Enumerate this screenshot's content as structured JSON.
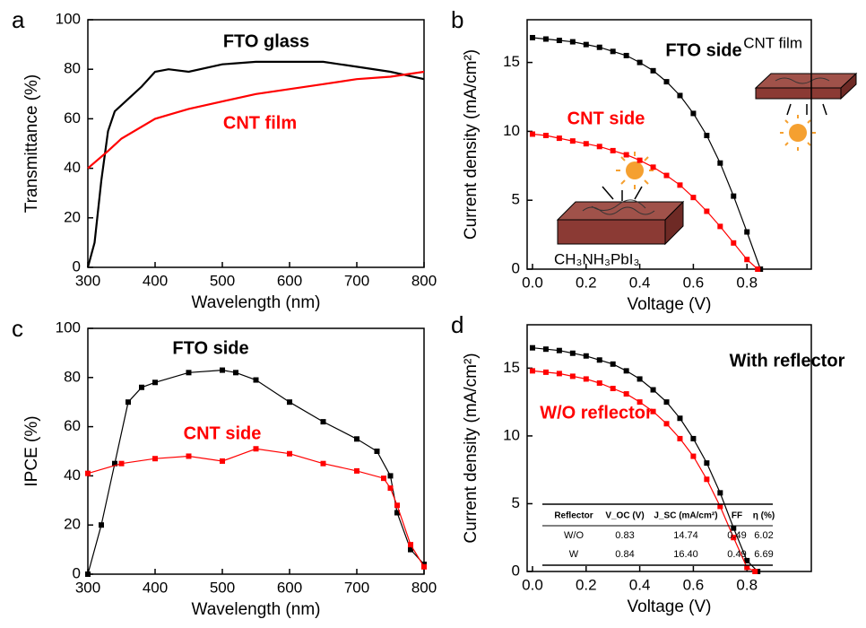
{
  "chart_data": [
    {
      "type": "line",
      "panel_label": "a",
      "x_label": "Wavelength (nm)",
      "y_label": "Transmittance (%)",
      "xlim": [
        300,
        800
      ],
      "ylim": [
        0,
        100
      ],
      "xticks": [
        300,
        400,
        500,
        600,
        700,
        800
      ],
      "yticks": [
        0,
        20,
        40,
        60,
        80,
        100
      ],
      "markers": false,
      "series": [
        {
          "name": "FTO glass",
          "color": "#000000",
          "x": [
            300,
            310,
            320,
            330,
            340,
            360,
            380,
            400,
            420,
            450,
            500,
            550,
            600,
            650,
            700,
            750,
            800
          ],
          "values": [
            0,
            10,
            35,
            55,
            63,
            68,
            73,
            79,
            80,
            79,
            82,
            83,
            83,
            83,
            81,
            79,
            76
          ]
        },
        {
          "name": "CNT film",
          "color": "#ff0000",
          "x": [
            300,
            330,
            350,
            400,
            450,
            500,
            550,
            600,
            650,
            700,
            750,
            800
          ],
          "values": [
            40,
            47,
            52,
            60,
            64,
            67,
            70,
            72,
            74,
            76,
            77,
            79
          ]
        }
      ]
    },
    {
      "type": "line",
      "panel_label": "b",
      "x_label": "Voltage (V)",
      "y_label": "Current density (mA/cm²)",
      "xlim": [
        -0.02,
        1.04
      ],
      "ylim": [
        0,
        18.1
      ],
      "xticks": [
        {
          "value": 0,
          "label": "0.0"
        },
        0.2,
        0.4,
        0.6,
        0.8
      ],
      "yticks": [
        0,
        5,
        10,
        15
      ],
      "markers": true,
      "series": [
        {
          "name": "FTO side",
          "color": "#000000",
          "x": [
            0,
            0.05,
            0.1,
            0.15,
            0.2,
            0.25,
            0.3,
            0.35,
            0.4,
            0.45,
            0.5,
            0.55,
            0.6,
            0.65,
            0.7,
            0.75,
            0.8,
            0.85
          ],
          "values": [
            16.8,
            16.7,
            16.6,
            16.5,
            16.3,
            16.1,
            15.8,
            15.5,
            15.0,
            14.4,
            13.6,
            12.6,
            11.3,
            9.7,
            7.7,
            5.3,
            2.7,
            0
          ]
        },
        {
          "name": "CNT side",
          "color": "#ff0000",
          "x": [
            0,
            0.05,
            0.1,
            0.15,
            0.2,
            0.25,
            0.3,
            0.35,
            0.4,
            0.45,
            0.5,
            0.55,
            0.6,
            0.65,
            0.7,
            0.75,
            0.8,
            0.84
          ],
          "values": [
            9.8,
            9.7,
            9.5,
            9.3,
            9.1,
            8.9,
            8.6,
            8.3,
            7.9,
            7.4,
            6.8,
            6.1,
            5.2,
            4.2,
            3.1,
            1.9,
            0.7,
            0
          ]
        }
      ],
      "annotations": [
        "CNT film",
        "CH₃NH₃PbI₃"
      ]
    },
    {
      "type": "line",
      "panel_label": "c",
      "x_label": "Wavelength (nm)",
      "y_label": "IPCE (%)",
      "xlim": [
        300,
        800
      ],
      "ylim": [
        0,
        100
      ],
      "xticks": [
        300,
        400,
        500,
        600,
        700,
        800
      ],
      "yticks": [
        0,
        20,
        40,
        60,
        80,
        100
      ],
      "markers": true,
      "series": [
        {
          "name": "FTO side",
          "color": "#000000",
          "x": [
            300,
            320,
            340,
            360,
            380,
            400,
            450,
            500,
            520,
            550,
            600,
            650,
            700,
            730,
            750,
            760,
            780,
            800
          ],
          "values": [
            0,
            20,
            45,
            70,
            76,
            78,
            82,
            83,
            82,
            79,
            70,
            62,
            55,
            50,
            40,
            25,
            10,
            4
          ]
        },
        {
          "name": "CNT side",
          "color": "#ff0000",
          "x": [
            300,
            350,
            400,
            450,
            500,
            550,
            600,
            650,
            700,
            740,
            750,
            760,
            780,
            800
          ],
          "values": [
            41,
            45,
            47,
            48,
            46,
            51,
            49,
            45,
            42,
            39,
            35,
            28,
            12,
            3
          ]
        }
      ]
    },
    {
      "type": "line",
      "panel_label": "d",
      "x_label": "Voltage (V)",
      "y_label": "Current density (mA/cm²)",
      "xlim": [
        -0.02,
        1.04
      ],
      "ylim": [
        0,
        18.2
      ],
      "xticks": [
        {
          "value": 0,
          "label": "0.0"
        },
        0.2,
        0.4,
        0.6,
        0.8
      ],
      "yticks": [
        0,
        5,
        10,
        15
      ],
      "markers": true,
      "series": [
        {
          "name": "With reflector",
          "color": "#000000",
          "x": [
            0,
            0.05,
            0.1,
            0.15,
            0.2,
            0.25,
            0.3,
            0.35,
            0.4,
            0.45,
            0.5,
            0.55,
            0.6,
            0.65,
            0.7,
            0.75,
            0.8,
            0.84
          ],
          "values": [
            16.5,
            16.4,
            16.3,
            16.1,
            15.9,
            15.6,
            15.3,
            14.8,
            14.2,
            13.4,
            12.5,
            11.3,
            9.8,
            8.0,
            5.8,
            3.2,
            0.8,
            0
          ]
        },
        {
          "name": "W/O reflector",
          "color": "#ff0000",
          "x": [
            0,
            0.05,
            0.1,
            0.15,
            0.2,
            0.25,
            0.3,
            0.35,
            0.4,
            0.45,
            0.5,
            0.55,
            0.6,
            0.65,
            0.7,
            0.75,
            0.8,
            0.83
          ],
          "values": [
            14.8,
            14.7,
            14.6,
            14.4,
            14.2,
            13.9,
            13.5,
            13.1,
            12.5,
            11.8,
            10.9,
            9.8,
            8.5,
            6.8,
            4.8,
            2.5,
            0.3,
            0
          ]
        }
      ],
      "table": {
        "columns": [
          "Reflector",
          "V_OC (V)",
          "J_SC (mA/cm²)",
          "FF",
          "η (%)"
        ],
        "rows": [
          [
            "W/O",
            "0.83",
            "14.74",
            "0.49",
            "6.02"
          ],
          [
            "W",
            "0.84",
            "16.40",
            "0.49",
            "6.69"
          ]
        ]
      }
    }
  ]
}
